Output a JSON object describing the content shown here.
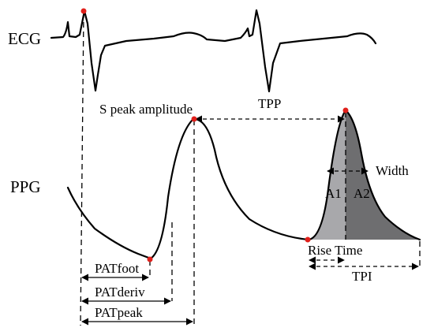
{
  "signals": {
    "ecg_label": "ECG",
    "ppg_label": "PPG"
  },
  "annotations": {
    "s_peak_amplitude": "S peak amplitude",
    "tpp": "TPP",
    "width": "Width",
    "a1": "A1",
    "a2": "A2",
    "rise_time": "Rise Time",
    "tpi": "TPI",
    "pat_foot": "PATfoot",
    "pat_deriv": "PATderiv",
    "pat_peak": "PATpeak"
  },
  "colors": {
    "marker": "#e0201b",
    "area_a1": "#a8a8ab",
    "area_a2": "#6e6e70",
    "line": "#000000"
  }
}
